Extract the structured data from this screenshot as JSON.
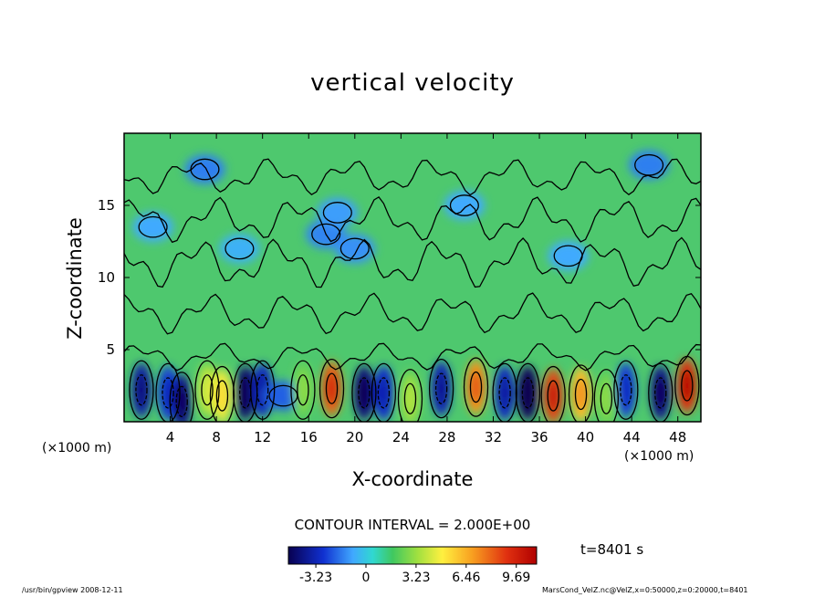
{
  "chart_data": {
    "type": "heatmap",
    "title": "vertical velocity",
    "xlabel": "X-coordinate",
    "ylabel": "Z-coordinate",
    "x_unit": "(×1000 m)",
    "x_ticks": [
      4,
      8,
      12,
      16,
      20,
      24,
      28,
      32,
      36,
      40,
      44,
      48
    ],
    "y_ticks": [
      5,
      10,
      15
    ],
    "xlim": [
      0,
      50
    ],
    "ylim": [
      0,
      20
    ],
    "contour_interval": "CONTOUR INTERVAL = 2.000E+00",
    "time_label": "t=8401 s",
    "colorbar_ticks": [
      "-3.23",
      "0",
      "3.23",
      "6.46",
      "9.69"
    ],
    "colorbar_range": [
      -5,
      11
    ],
    "cells": [
      {
        "x": 1.5,
        "z": 2.2,
        "v": -3.5
      },
      {
        "x": 3.8,
        "z": 2.0,
        "v": -2.5
      },
      {
        "x": 5.0,
        "z": 1.4,
        "v": -4.0
      },
      {
        "x": 7.2,
        "z": 2.2,
        "v": 3.5
      },
      {
        "x": 8.5,
        "z": 1.8,
        "v": 4.5
      },
      {
        "x": 10.5,
        "z": 2.0,
        "v": -4.5
      },
      {
        "x": 12.0,
        "z": 2.2,
        "v": -3.0
      },
      {
        "x": 13.8,
        "z": 1.8,
        "v": -2.0
      },
      {
        "x": 15.5,
        "z": 2.2,
        "v": 2.5
      },
      {
        "x": 18.0,
        "z": 2.3,
        "v": 8.0
      },
      {
        "x": 20.8,
        "z": 2.0,
        "v": -4.2
      },
      {
        "x": 22.5,
        "z": 2.0,
        "v": -2.8
      },
      {
        "x": 24.8,
        "z": 1.6,
        "v": 3.0
      },
      {
        "x": 27.5,
        "z": 2.3,
        "v": -3.2
      },
      {
        "x": 30.5,
        "z": 2.4,
        "v": 7.0
      },
      {
        "x": 33.0,
        "z": 2.0,
        "v": -3.0
      },
      {
        "x": 35.0,
        "z": 2.0,
        "v": -4.8
      },
      {
        "x": 37.2,
        "z": 1.8,
        "v": 8.5
      },
      {
        "x": 39.6,
        "z": 1.9,
        "v": 6.0
      },
      {
        "x": 41.8,
        "z": 1.6,
        "v": 2.5
      },
      {
        "x": 43.5,
        "z": 2.2,
        "v": -2.5
      },
      {
        "x": 46.5,
        "z": 2.0,
        "v": -4.0
      },
      {
        "x": 48.8,
        "z": 2.5,
        "v": 9.0
      },
      {
        "x": 7.0,
        "z": 17.5,
        "v": -1.5
      },
      {
        "x": 45.5,
        "z": 17.8,
        "v": -1.5
      },
      {
        "x": 17.5,
        "z": 13.0,
        "v": -1.4
      },
      {
        "x": 20.0,
        "z": 12.0,
        "v": -1.2
      },
      {
        "x": 18.5,
        "z": 14.5,
        "v": -1.0
      },
      {
        "x": 29.5,
        "z": 15.0,
        "v": -0.8
      },
      {
        "x": 38.5,
        "z": 11.5,
        "v": -0.8
      },
      {
        "x": 2.5,
        "z": 13.5,
        "v": -0.8
      },
      {
        "x": 10.0,
        "z": 12.0,
        "v": -0.6
      }
    ]
  },
  "footer": {
    "left": "/usr/bin/gpview   2008-12-11",
    "right": "MarsCond_VelZ.nc@VelZ,x=0:50000,z=0:20000,t=8401"
  }
}
